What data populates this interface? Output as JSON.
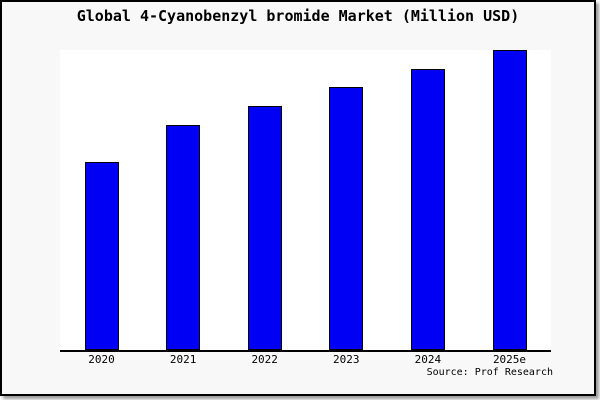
{
  "chart_data": {
    "type": "bar",
    "title": "Global 4-Cyanobenzyl bromide Market (Million USD)",
    "categories": [
      "2020",
      "2021",
      "2022",
      "2023",
      "2024",
      "2025e"
    ],
    "values": [
      62.7,
      75.0,
      81.3,
      87.7,
      93.7,
      100.0
    ],
    "xlabel": "",
    "ylabel": "",
    "ylim": [
      0,
      100
    ],
    "grid": false,
    "legend_position": "none",
    "source": "Source: Prof Research",
    "bar_color": "#0000f5",
    "bar_edge_color": "#000000",
    "figure_background_color": "#f8f8f8",
    "plot_background_color": "#ffffff"
  }
}
